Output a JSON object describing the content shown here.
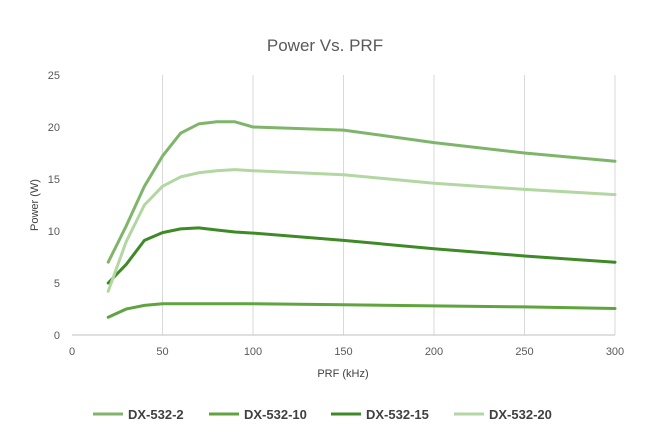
{
  "chart_data": {
    "type": "line",
    "title": "Power Vs. PRF",
    "xlabel": "PRF (kHz)",
    "ylabel": "Power (W)",
    "xlim": [
      0,
      300
    ],
    "ylim": [
      0,
      25
    ],
    "xticks": [
      0,
      50,
      100,
      150,
      200,
      250,
      300
    ],
    "yticks": [
      0,
      5,
      10,
      15,
      20,
      25
    ],
    "grid": "vertical",
    "legend": "bottom",
    "series": [
      {
        "name": "DX-532-2",
        "color": "#7fb56a",
        "points": [
          [
            20,
            7.0
          ],
          [
            30,
            10.5
          ],
          [
            40,
            14.3
          ],
          [
            50,
            17.2
          ],
          [
            60,
            19.4
          ],
          [
            70,
            20.3
          ],
          [
            80,
            20.5
          ],
          [
            90,
            20.5
          ],
          [
            100,
            20.0
          ],
          [
            150,
            19.7
          ],
          [
            200,
            18.5
          ],
          [
            250,
            17.5
          ],
          [
            300,
            16.7
          ]
        ]
      },
      {
        "name": "DX-532-10",
        "color": "#5fa43e",
        "points": [
          [
            20,
            1.7
          ],
          [
            30,
            2.5
          ],
          [
            40,
            2.85
          ],
          [
            50,
            3.0
          ],
          [
            60,
            3.0
          ],
          [
            70,
            3.0
          ],
          [
            80,
            3.0
          ],
          [
            90,
            3.0
          ],
          [
            100,
            3.0
          ],
          [
            150,
            2.9
          ],
          [
            200,
            2.8
          ],
          [
            250,
            2.7
          ],
          [
            300,
            2.55
          ]
        ]
      },
      {
        "name": "DX-532-15",
        "color": "#3e8a26",
        "points": [
          [
            20,
            5.0
          ],
          [
            30,
            6.8
          ],
          [
            40,
            9.1
          ],
          [
            50,
            9.85
          ],
          [
            60,
            10.2
          ],
          [
            70,
            10.3
          ],
          [
            80,
            10.1
          ],
          [
            90,
            9.9
          ],
          [
            100,
            9.8
          ],
          [
            150,
            9.1
          ],
          [
            200,
            8.3
          ],
          [
            250,
            7.6
          ],
          [
            300,
            7.0
          ]
        ]
      },
      {
        "name": "DX-532-20",
        "color": "#b3d7a2",
        "points": [
          [
            20,
            4.2
          ],
          [
            30,
            9.0
          ],
          [
            40,
            12.5
          ],
          [
            50,
            14.3
          ],
          [
            60,
            15.2
          ],
          [
            70,
            15.6
          ],
          [
            80,
            15.8
          ],
          [
            90,
            15.9
          ],
          [
            100,
            15.8
          ],
          [
            150,
            15.4
          ],
          [
            200,
            14.6
          ],
          [
            250,
            14.0
          ],
          [
            300,
            13.5
          ]
        ]
      }
    ]
  }
}
